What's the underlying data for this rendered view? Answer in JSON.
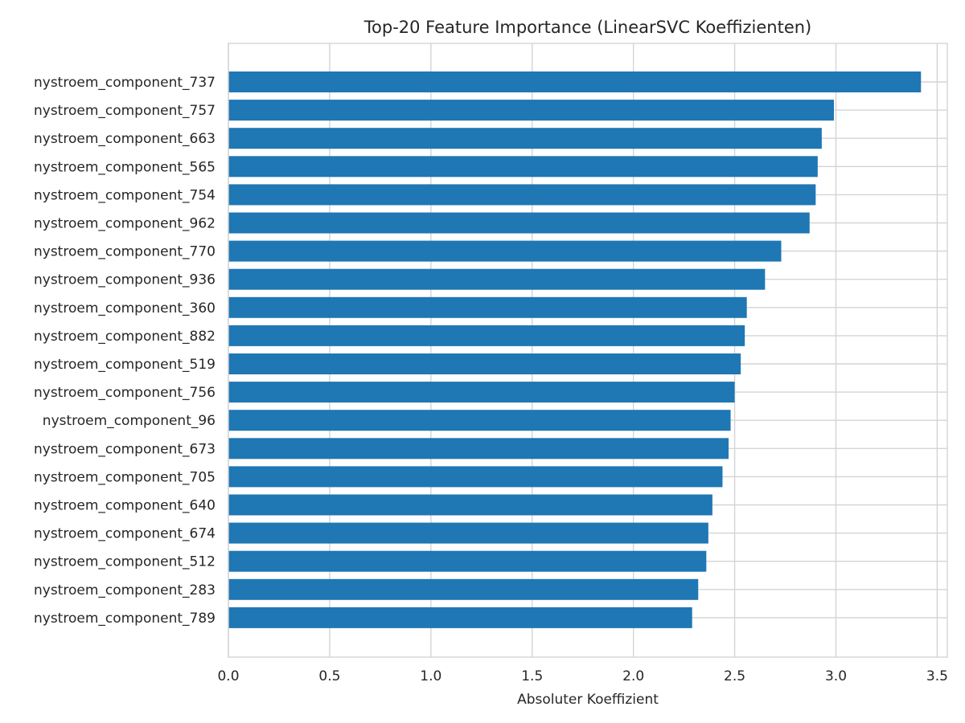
{
  "chart_data": {
    "type": "bar",
    "orientation": "horizontal",
    "title": "Top-20 Feature Importance (LinearSVC Koeffizienten)",
    "xlabel": "Absoluter Koeffizient",
    "ylabel": "",
    "xlim": [
      0,
      3.55
    ],
    "xticks": [
      "0.0",
      "0.5",
      "1.0",
      "1.5",
      "2.0",
      "2.5",
      "3.0",
      "3.5"
    ],
    "grid": true,
    "bar_color": "#1f77b4",
    "categories": [
      "nystroem_component_737",
      "nystroem_component_757",
      "nystroem_component_663",
      "nystroem_component_565",
      "nystroem_component_754",
      "nystroem_component_962",
      "nystroem_component_770",
      "nystroem_component_936",
      "nystroem_component_360",
      "nystroem_component_882",
      "nystroem_component_519",
      "nystroem_component_756",
      "nystroem_component_96",
      "nystroem_component_673",
      "nystroem_component_705",
      "nystroem_component_640",
      "nystroem_component_674",
      "nystroem_component_512",
      "nystroem_component_283",
      "nystroem_component_789"
    ],
    "values": [
      3.42,
      2.99,
      2.93,
      2.91,
      2.9,
      2.87,
      2.73,
      2.65,
      2.56,
      2.55,
      2.53,
      2.5,
      2.48,
      2.47,
      2.44,
      2.39,
      2.37,
      2.36,
      2.32,
      2.29
    ]
  }
}
